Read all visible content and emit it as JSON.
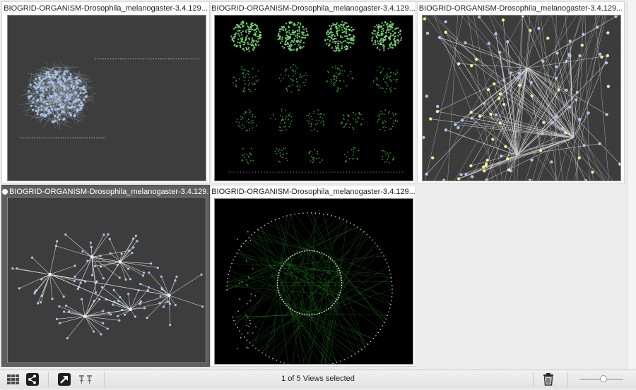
{
  "views": [
    {
      "title": "BIOGRID-ORGANISM-Drosophila_melanogaster-3.4.129...",
      "selected": false
    },
    {
      "title": "BIOGRID-ORGANISM-Drosophila_melanogaster-3.4.129...",
      "selected": false
    },
    {
      "title": "BIOGRID-ORGANISM-Drosophila_melanogaster-3.4.129...",
      "selected": false
    },
    {
      "title": "BIOGRID-ORGANISM-Drosophila_melanogaster-3.4.129...",
      "selected": true
    },
    {
      "title": "BIOGRID-ORGANISM-Drosophila_melanogaster-3.4.129...",
      "selected": false
    }
  ],
  "toolbar": {
    "grid_icon": "grid-view-icon",
    "share_icon": "share-icon",
    "detach_icon": "detach-view-icon",
    "pin_icon": "pin-icon",
    "trash_icon": "trash-icon",
    "status_text": "1 of 5 Views selected",
    "zoom_level": 0.55
  },
  "colors": {
    "panel_bg": "#ececec",
    "node_blue": "#a9c8ee",
    "node_yellow": "#f1ef9c",
    "edge_green": "#2fa32f"
  }
}
